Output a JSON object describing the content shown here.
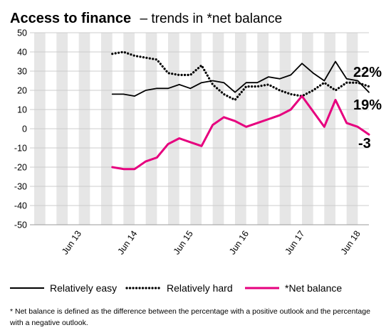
{
  "title_bold": "Access to finance",
  "title_rest": "– trends in *net balance",
  "footnote": "* Net balance is defined as the difference between the percentage with a positive outlook and the percentage with a negative outlook.",
  "colors": {
    "easy": "#000000",
    "hard": "#000000",
    "net": "#e6007e",
    "band": "#e6e6e6",
    "grid": "#cccccc"
  },
  "chart_data": {
    "type": "line",
    "title": "Access to finance – trends in *net balance",
    "ylim": [
      -50,
      50
    ],
    "yticks": [
      50,
      40,
      30,
      20,
      10,
      0,
      -10,
      -20,
      -30,
      -40,
      -50
    ],
    "ytick_labels": [
      "50",
      "40",
      "30",
      "20",
      "10",
      "0",
      "-10",
      "-20",
      "-30",
      "-40",
      "-50"
    ],
    "x_count": 31,
    "xtick_labels": [
      {
        "label": "Jun 13",
        "index": 4
      },
      {
        "label": "Jun 14",
        "index": 9
      },
      {
        "label": "Jun 15",
        "index": 14
      },
      {
        "label": "Jun 16",
        "index": 19
      },
      {
        "label": "Jun 17",
        "index": 24
      },
      {
        "label": "Jun 18",
        "index": 29
      }
    ],
    "series": [
      {
        "name": "Relatively easy",
        "style": "solid",
        "values": [
          18,
          18,
          17,
          20,
          21,
          21,
          23,
          21,
          24,
          25,
          24,
          19,
          24,
          24,
          27,
          26,
          28,
          34,
          29,
          25,
          35,
          26,
          25,
          19
        ]
      },
      {
        "name": "Relatively hard",
        "style": "dotted",
        "values": [
          39,
          40,
          38,
          37,
          36,
          29,
          28,
          28,
          33,
          23,
          18,
          15,
          22,
          22,
          23,
          20,
          18,
          17,
          20,
          24,
          20,
          24,
          24,
          22
        ]
      },
      {
        "name": "*Net balance",
        "style": "solid-thick",
        "values": [
          -20,
          -21,
          -21,
          -17,
          -15,
          -8,
          -5,
          -7,
          -9,
          2,
          6,
          4,
          1,
          3,
          5,
          7,
          10,
          17,
          9,
          1,
          15,
          3,
          1,
          -3
        ]
      }
    ],
    "end_labels": {
      "easy": "19%",
      "hard": "22%",
      "net": "-3"
    },
    "legend_position": "bottom",
    "grid": true
  }
}
